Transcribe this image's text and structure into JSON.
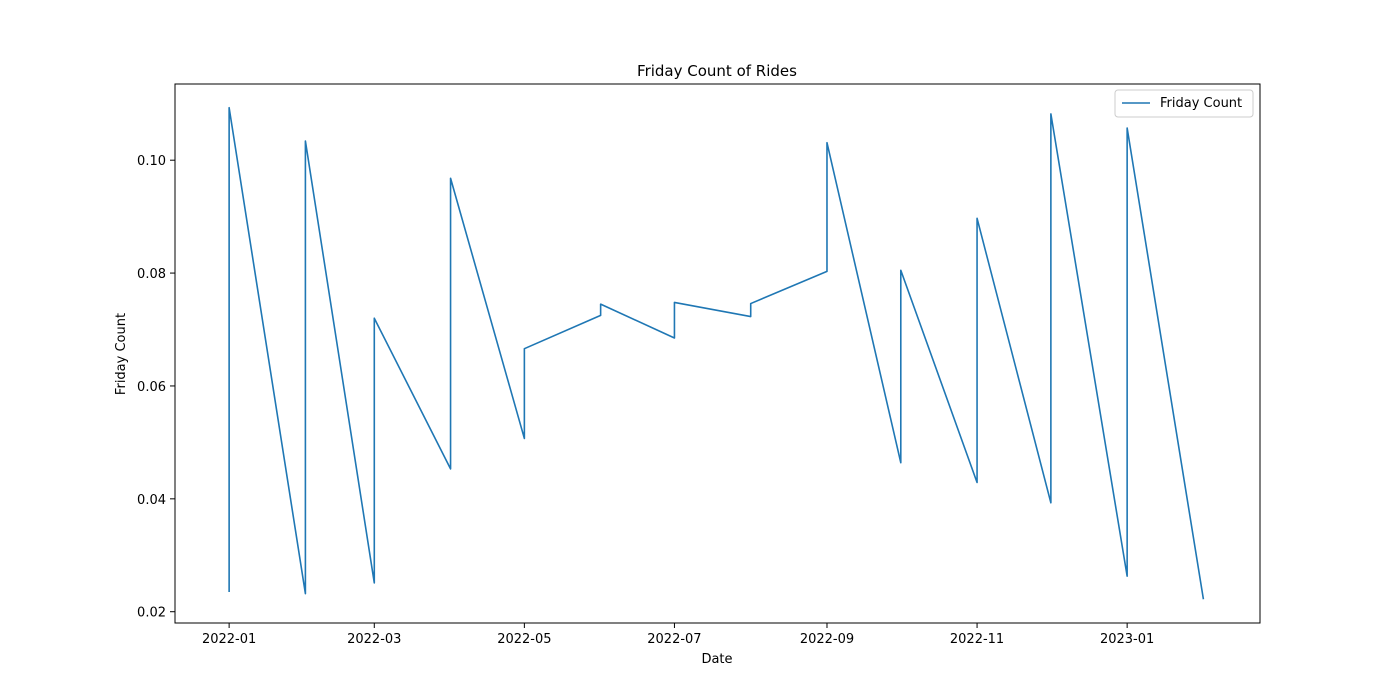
{
  "chart_data": {
    "type": "line",
    "title": "Friday Count of Rides",
    "xlabel": "Date",
    "ylabel": "Friday Count",
    "x_ticks": [
      "2022-01",
      "2022-03",
      "2022-05",
      "2022-07",
      "2022-09",
      "2022-11",
      "2023-01"
    ],
    "y_ticks": [
      0.02,
      0.04,
      0.06,
      0.08,
      0.1
    ],
    "y_tick_labels": [
      "0.02",
      "0.04",
      "0.06",
      "0.08",
      "0.10"
    ],
    "xlim": [
      "2021-12-10",
      "2023-02-24"
    ],
    "ylim": [
      0.018,
      0.1135
    ],
    "grid": false,
    "legend": {
      "position": "top-right",
      "entries": [
        "Friday Count"
      ]
    },
    "series": [
      {
        "name": "Friday Count",
        "color": "#1f77b4",
        "points": [
          {
            "date": "2022-01-01",
            "value": 0.0235
          },
          {
            "date": "2022-01-01",
            "value": 0.1093
          },
          {
            "date": "2022-02-01",
            "value": 0.0232
          },
          {
            "date": "2022-02-01",
            "value": 0.1034
          },
          {
            "date": "2022-03-01",
            "value": 0.0251
          },
          {
            "date": "2022-03-01",
            "value": 0.072
          },
          {
            "date": "2022-04-01",
            "value": 0.0453
          },
          {
            "date": "2022-04-01",
            "value": 0.0968
          },
          {
            "date": "2022-05-01",
            "value": 0.0507
          },
          {
            "date": "2022-05-01",
            "value": 0.0666
          },
          {
            "date": "2022-06-01",
            "value": 0.0725
          },
          {
            "date": "2022-06-01",
            "value": 0.0745
          },
          {
            "date": "2022-07-01",
            "value": 0.0685
          },
          {
            "date": "2022-07-01",
            "value": 0.0748
          },
          {
            "date": "2022-08-01",
            "value": 0.0723
          },
          {
            "date": "2022-08-01",
            "value": 0.0746
          },
          {
            "date": "2022-09-01",
            "value": 0.0803
          },
          {
            "date": "2022-09-01",
            "value": 0.1031
          },
          {
            "date": "2022-10-01",
            "value": 0.0464
          },
          {
            "date": "2022-10-01",
            "value": 0.0805
          },
          {
            "date": "2022-11-01",
            "value": 0.0429
          },
          {
            "date": "2022-11-01",
            "value": 0.0897
          },
          {
            "date": "2022-12-01",
            "value": 0.0393
          },
          {
            "date": "2022-12-01",
            "value": 0.1082
          },
          {
            "date": "2023-01-01",
            "value": 0.0263
          },
          {
            "date": "2023-01-01",
            "value": 0.1057
          },
          {
            "date": "2023-02-01",
            "value": 0.0222
          }
        ]
      }
    ]
  }
}
